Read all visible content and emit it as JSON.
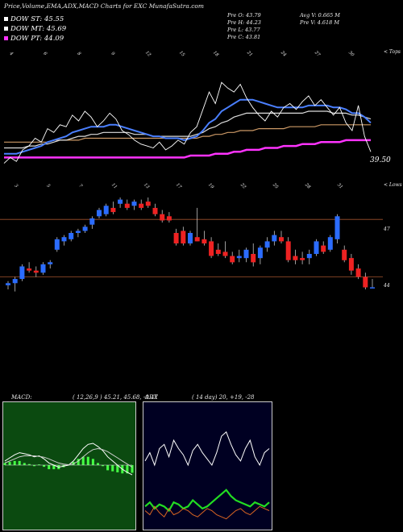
{
  "header": {
    "title": "Price,Volume,EMA,ADX,MACD Charts for EXC MunafaSutra.com",
    "legend": [
      {
        "label": "DOW ST: 45.55",
        "color": "#ffffff"
      },
      {
        "label": "DOW MT: 45.69",
        "color": "#ffffff"
      },
      {
        "label": "DOW PT: 44.09",
        "color": "#ff33ff"
      }
    ],
    "stats_left": [
      "Pre   O: 43.79",
      "Pre   H: 44.23",
      "Pre   L: 43.77",
      "Pre   C: 43.81"
    ],
    "stats_right": [
      "Avg V: 0.665 M",
      "Pre   V: 4.618 M"
    ]
  },
  "top_panel": {
    "top_label": "< Tops",
    "price_label": "39.50",
    "axis_labels": [
      "4",
      "6",
      "8",
      "9",
      "12",
      "15",
      "18",
      "21",
      "24",
      "27",
      "30"
    ]
  },
  "candle_panel": {
    "lows_label": "< Lows",
    "level_high": "47",
    "level_low": "44",
    "axis_labels": [
      "3",
      "5",
      "7",
      "11",
      "13",
      "17",
      "19",
      "22",
      "25",
      "28",
      "31"
    ]
  },
  "macd": {
    "label": "MACD:",
    "params": "( 12,26,9 ) 45.21, 45.68, -0.47"
  },
  "adx": {
    "label": "ADX",
    "params": "( 14 day) 20, +19, -28"
  },
  "chart_data": [
    {
      "type": "line",
      "name": "price-ema",
      "series": [
        {
          "name": "Close",
          "color": "#ffffff",
          "values": [
            45.1,
            45.4,
            45.2,
            45.8,
            46.0,
            46.4,
            46.2,
            46.9,
            46.7,
            47.1,
            47.0,
            47.6,
            47.3,
            47.8,
            47.5,
            47.0,
            47.3,
            47.7,
            47.4,
            46.8,
            46.6,
            46.3,
            46.1,
            46.0,
            45.9,
            46.2,
            45.8,
            46.0,
            46.3,
            46.1,
            46.7,
            47.0,
            47.9,
            48.8,
            48.2,
            49.3,
            49.0,
            48.8,
            49.2,
            48.5,
            48.0,
            47.6,
            47.3,
            47.8,
            47.5,
            48.0,
            48.2,
            47.9,
            48.3,
            48.6,
            48.1,
            48.4,
            48.0,
            47.6,
            48.0,
            47.2,
            46.8,
            48.1,
            46.5,
            45.7
          ]
        },
        {
          "name": "EMA short",
          "color": "#4a7fff",
          "values": [
            45.6,
            45.6,
            45.6,
            45.7,
            45.8,
            45.9,
            46.0,
            46.2,
            46.3,
            46.4,
            46.5,
            46.7,
            46.8,
            46.9,
            47.0,
            47.0,
            47.0,
            47.1,
            47.1,
            47.0,
            46.9,
            46.8,
            46.7,
            46.6,
            46.5,
            46.5,
            46.4,
            46.4,
            46.4,
            46.3,
            46.4,
            46.5,
            46.8,
            47.2,
            47.4,
            47.8,
            48.0,
            48.2,
            48.4,
            48.4,
            48.4,
            48.3,
            48.2,
            48.1,
            48.0,
            48.0,
            48.0,
            48.0,
            48.0,
            48.1,
            48.1,
            48.1,
            48.1,
            48.0,
            48.0,
            47.9,
            47.7,
            47.7,
            47.5,
            47.2
          ]
        },
        {
          "name": "EMA mid",
          "color": "#dddddd",
          "values": [
            45.9,
            45.9,
            45.9,
            45.9,
            46.0,
            46.0,
            46.1,
            46.1,
            46.2,
            46.3,
            46.3,
            46.4,
            46.5,
            46.5,
            46.6,
            46.6,
            46.7,
            46.7,
            46.7,
            46.7,
            46.7,
            46.6,
            46.6,
            46.6,
            46.5,
            46.5,
            46.5,
            46.5,
            46.5,
            46.5,
            46.5,
            46.6,
            46.7,
            46.9,
            47.0,
            47.2,
            47.3,
            47.5,
            47.6,
            47.7,
            47.7,
            47.7,
            47.7,
            47.7,
            47.7,
            47.7,
            47.7,
            47.7,
            47.7,
            47.8,
            47.8,
            47.8,
            47.8,
            47.7,
            47.7,
            47.7,
            47.6,
            47.6,
            47.5,
            47.4
          ]
        },
        {
          "name": "EMA long",
          "color": "#cc9966",
          "values": [
            46.2,
            46.2,
            46.2,
            46.2,
            46.2,
            46.2,
            46.2,
            46.2,
            46.3,
            46.3,
            46.3,
            46.3,
            46.3,
            46.4,
            46.4,
            46.4,
            46.4,
            46.4,
            46.4,
            46.4,
            46.4,
            46.4,
            46.4,
            46.4,
            46.4,
            46.4,
            46.4,
            46.4,
            46.4,
            46.4,
            46.4,
            46.4,
            46.5,
            46.5,
            46.6,
            46.6,
            46.7,
            46.7,
            46.8,
            46.8,
            46.8,
            46.9,
            46.9,
            46.9,
            46.9,
            46.9,
            47.0,
            47.0,
            47.0,
            47.0,
            47.0,
            47.1,
            47.1,
            47.1,
            47.1,
            47.1,
            47.1,
            47.1,
            47.1,
            47.1
          ]
        },
        {
          "name": "EMA longest",
          "color": "#ff33ff",
          "values": [
            45.4,
            45.4,
            45.4,
            45.4,
            45.4,
            45.4,
            45.4,
            45.4,
            45.4,
            45.4,
            45.4,
            45.4,
            45.4,
            45.4,
            45.4,
            45.4,
            45.4,
            45.4,
            45.4,
            45.4,
            45.4,
            45.4,
            45.4,
            45.4,
            45.4,
            45.4,
            45.4,
            45.4,
            45.4,
            45.4,
            45.5,
            45.5,
            45.5,
            45.5,
            45.6,
            45.6,
            45.6,
            45.7,
            45.7,
            45.8,
            45.8,
            45.8,
            45.9,
            45.9,
            45.9,
            46.0,
            46.0,
            46.0,
            46.1,
            46.1,
            46.1,
            46.2,
            46.2,
            46.2,
            46.2,
            46.3,
            46.3,
            46.3,
            46.3,
            46.3
          ]
        }
      ],
      "ylim": [
        45.0,
        49.6
      ]
    },
    {
      "type": "candlestick",
      "name": "price-candles",
      "ylim": [
        43.2,
        48.6
      ],
      "candles": [
        {
          "o": 43.9,
          "h": 44.1,
          "l": 43.7,
          "c": 44.0
        },
        {
          "o": 44.0,
          "h": 44.3,
          "l": 43.6,
          "c": 44.2
        },
        {
          "o": 44.2,
          "h": 44.9,
          "l": 44.1,
          "c": 44.8
        },
        {
          "o": 44.7,
          "h": 45.0,
          "l": 44.5,
          "c": 44.6
        },
        {
          "o": 44.6,
          "h": 44.8,
          "l": 44.3,
          "c": 44.5
        },
        {
          "o": 44.5,
          "h": 45.0,
          "l": 44.4,
          "c": 44.9
        },
        {
          "o": 44.9,
          "h": 45.1,
          "l": 44.7,
          "c": 45.0
        },
        {
          "o": 45.6,
          "h": 46.2,
          "l": 45.5,
          "c": 46.1
        },
        {
          "o": 46.0,
          "h": 46.3,
          "l": 45.8,
          "c": 46.2
        },
        {
          "o": 46.1,
          "h": 46.5,
          "l": 46.0,
          "c": 46.4
        },
        {
          "o": 46.4,
          "h": 46.6,
          "l": 46.2,
          "c": 46.5
        },
        {
          "o": 46.5,
          "h": 46.8,
          "l": 46.4,
          "c": 46.7
        },
        {
          "o": 46.8,
          "h": 47.2,
          "l": 46.6,
          "c": 47.1
        },
        {
          "o": 47.2,
          "h": 47.6,
          "l": 47.1,
          "c": 47.5
        },
        {
          "o": 47.3,
          "h": 47.8,
          "l": 47.2,
          "c": 47.7
        },
        {
          "o": 47.6,
          "h": 47.9,
          "l": 47.3,
          "c": 47.4
        },
        {
          "o": 47.8,
          "h": 48.1,
          "l": 47.6,
          "c": 48.0
        },
        {
          "o": 47.8,
          "h": 48.0,
          "l": 47.5,
          "c": 47.6
        },
        {
          "o": 47.7,
          "h": 48.0,
          "l": 47.5,
          "c": 47.9
        },
        {
          "o": 47.8,
          "h": 48.0,
          "l": 47.5,
          "c": 47.6
        },
        {
          "o": 47.9,
          "h": 48.1,
          "l": 47.6,
          "c": 47.7
        },
        {
          "o": 47.6,
          "h": 47.8,
          "l": 47.2,
          "c": 47.3
        },
        {
          "o": 47.3,
          "h": 47.5,
          "l": 46.9,
          "c": 47.0
        },
        {
          "o": 47.2,
          "h": 47.4,
          "l": 46.9,
          "c": 47.0
        },
        {
          "o": 46.4,
          "h": 46.6,
          "l": 45.8,
          "c": 45.9
        },
        {
          "o": 46.5,
          "h": 46.7,
          "l": 45.8,
          "c": 45.9
        },
        {
          "o": 45.9,
          "h": 46.5,
          "l": 45.8,
          "c": 46.4
        },
        {
          "o": 46.2,
          "h": 47.6,
          "l": 46.0,
          "c": 46.0
        },
        {
          "o": 46.1,
          "h": 46.5,
          "l": 45.8,
          "c": 45.9
        },
        {
          "o": 46.0,
          "h": 46.2,
          "l": 45.2,
          "c": 45.3
        },
        {
          "o": 45.6,
          "h": 45.9,
          "l": 45.3,
          "c": 45.4
        },
        {
          "o": 45.5,
          "h": 46.0,
          "l": 45.2,
          "c": 45.3
        },
        {
          "o": 45.3,
          "h": 45.5,
          "l": 44.9,
          "c": 45.0
        },
        {
          "o": 45.2,
          "h": 45.6,
          "l": 45.0,
          "c": 45.3
        },
        {
          "o": 45.2,
          "h": 45.7,
          "l": 45.0,
          "c": 45.6
        },
        {
          "o": 45.4,
          "h": 45.9,
          "l": 44.8,
          "c": 45.0
        },
        {
          "o": 45.2,
          "h": 45.8,
          "l": 44.9,
          "c": 45.7
        },
        {
          "o": 45.7,
          "h": 46.2,
          "l": 45.5,
          "c": 46.0
        },
        {
          "o": 46.0,
          "h": 46.5,
          "l": 45.8,
          "c": 46.3
        },
        {
          "o": 46.2,
          "h": 46.5,
          "l": 45.9,
          "c": 46.0
        },
        {
          "o": 46.0,
          "h": 46.2,
          "l": 45.0,
          "c": 45.1
        },
        {
          "o": 45.3,
          "h": 45.6,
          "l": 44.9,
          "c": 45.1
        },
        {
          "o": 45.2,
          "h": 45.5,
          "l": 44.9,
          "c": 45.1
        },
        {
          "o": 45.2,
          "h": 45.6,
          "l": 44.9,
          "c": 45.4
        },
        {
          "o": 45.4,
          "h": 46.1,
          "l": 45.3,
          "c": 46.0
        },
        {
          "o": 45.8,
          "h": 46.0,
          "l": 45.4,
          "c": 45.5
        },
        {
          "o": 45.6,
          "h": 46.3,
          "l": 45.5,
          "c": 46.2
        },
        {
          "o": 46.1,
          "h": 47.3,
          "l": 45.9,
          "c": 47.2
        },
        {
          "o": 45.6,
          "h": 45.8,
          "l": 45.0,
          "c": 45.1
        },
        {
          "o": 45.2,
          "h": 45.4,
          "l": 44.4,
          "c": 44.6
        },
        {
          "o": 44.7,
          "h": 44.9,
          "l": 44.2,
          "c": 44.3
        },
        {
          "o": 44.3,
          "h": 44.5,
          "l": 43.7,
          "c": 43.8
        },
        {
          "o": 43.8,
          "h": 44.2,
          "l": 43.8,
          "c": 43.8
        }
      ]
    },
    {
      "type": "line",
      "name": "macd",
      "ylim": [
        -3,
        3
      ],
      "series": [
        {
          "name": "MACD",
          "color": "#ffffff",
          "values": [
            0.2,
            0.35,
            0.5,
            0.6,
            0.55,
            0.5,
            0.4,
            0.45,
            0.3,
            0.1,
            0.0,
            -0.1,
            -0.05,
            0.0,
            0.2,
            0.5,
            0.8,
            1.0,
            1.05,
            0.9,
            0.7,
            0.4,
            0.2,
            0.0,
            -0.2,
            -0.35,
            -0.47
          ]
        },
        {
          "name": "Signal",
          "color": "#cccccc",
          "values": [
            0.1,
            0.2,
            0.3,
            0.4,
            0.45,
            0.45,
            0.45,
            0.42,
            0.38,
            0.3,
            0.2,
            0.1,
            0.05,
            0.02,
            0.05,
            0.2,
            0.4,
            0.6,
            0.75,
            0.8,
            0.75,
            0.65,
            0.5,
            0.35,
            0.2,
            0.05,
            -0.1
          ]
        }
      ]
    },
    {
      "type": "line",
      "name": "adx",
      "ylim": [
        0,
        60
      ],
      "series": [
        {
          "name": "DI white",
          "color": "#ffffff",
          "values": [
            32,
            36,
            30,
            38,
            40,
            34,
            42,
            38,
            35,
            30,
            37,
            40,
            36,
            33,
            30,
            36,
            44,
            46,
            40,
            35,
            32,
            38,
            42,
            34,
            30,
            36,
            38
          ]
        },
        {
          "name": "ADX green",
          "color": "#22dd22",
          "values": [
            10,
            12,
            9,
            11,
            10,
            8,
            12,
            11,
            9,
            10,
            13,
            11,
            9,
            10,
            12,
            14,
            16,
            18,
            15,
            13,
            12,
            11,
            10,
            12,
            11,
            10,
            12
          ]
        },
        {
          "name": "DI red",
          "color": "#dd6622",
          "values": [
            8,
            6,
            10,
            7,
            5,
            9,
            6,
            7,
            9,
            8,
            6,
            5,
            7,
            9,
            8,
            6,
            5,
            4,
            6,
            8,
            9,
            7,
            6,
            8,
            10,
            9,
            8
          ]
        }
      ]
    }
  ]
}
